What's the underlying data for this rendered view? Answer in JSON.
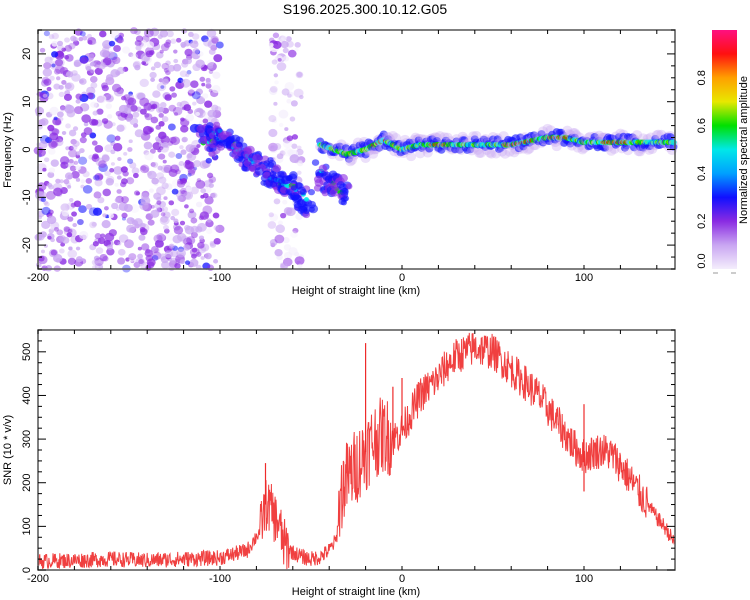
{
  "title": "S196.2025.300.10.12.G05",
  "chart_data": [
    {
      "type": "heatmap",
      "name": "spectrogram",
      "xlabel": "Height of straight line (km)",
      "ylabel": "Frequency (Hz)",
      "xlim": [
        -200,
        150
      ],
      "ylim": [
        -25,
        25
      ],
      "xticks": [
        -200,
        -100,
        0,
        100
      ],
      "yticks": [
        -20,
        -10,
        0,
        10,
        20
      ],
      "grid": false,
      "colorbar": {
        "label": "Normalized spectral amplitude",
        "range": [
          0,
          1
        ],
        "ticks": [
          0.0,
          0.2,
          0.4,
          0.6,
          0.8
        ],
        "colormap": [
          "#f4eefc",
          "#c9a6f2",
          "#8a2be2",
          "#1010ff",
          "#00a0ff",
          "#00e8e8",
          "#00e000",
          "#e8e800",
          "#ffa000",
          "#ff1010",
          "#ff1080"
        ]
      },
      "features": [
        {
          "label": "noise",
          "x_range": [
            -200,
            -100
          ],
          "freq_range": [
            -25,
            25
          ],
          "amplitude": 0.1
        },
        {
          "label": "noise-band",
          "x_range": [
            -72,
            -55
          ],
          "freq_range": [
            -25,
            25
          ],
          "amplitude": 0.05
        },
        {
          "label": "descending-trace-a",
          "points": [
            [
              -110,
              2
            ],
            [
              -100,
              3
            ],
            [
              -90,
              0
            ],
            [
              -80,
              -3
            ],
            [
              -70,
              -6
            ],
            [
              -60,
              -8
            ],
            [
              -50,
              -12
            ]
          ],
          "amplitude": 0.35
        },
        {
          "label": "descending-trace-b",
          "points": [
            [
              -45,
              -5
            ],
            [
              -40,
              -7
            ],
            [
              -35,
              -8
            ],
            [
              -30,
              -10
            ]
          ],
          "amplitude": 0.3
        },
        {
          "label": "stable-carrier",
          "points": [
            [
              -45,
              1
            ],
            [
              -30,
              -1
            ],
            [
              -20,
              0
            ],
            [
              -10,
              2
            ],
            [
              0,
              0
            ],
            [
              10,
              1
            ],
            [
              20,
              1
            ],
            [
              40,
              1
            ],
            [
              60,
              1
            ],
            [
              80,
              2.5
            ],
            [
              90,
              2.5
            ],
            [
              100,
              1.5
            ],
            [
              120,
              1.5
            ],
            [
              150,
              1.5
            ]
          ],
          "amplitude": 0.9
        }
      ]
    },
    {
      "type": "line",
      "name": "snr",
      "xlabel": "Height of straight line (km)",
      "ylabel": "SNR (10 * v/v)",
      "xlim": [
        -200,
        150
      ],
      "ylim": [
        0,
        550
      ],
      "xticks": [
        -200,
        -100,
        0,
        100
      ],
      "yticks": [
        0,
        100,
        200,
        300,
        400,
        500
      ],
      "grid": false,
      "color": "#ee2b2b",
      "series": [
        {
          "name": "SNR",
          "x": [
            -200,
            -180,
            -160,
            -140,
            -120,
            -100,
            -85,
            -78,
            -75,
            -72,
            -70,
            -68,
            -65,
            -60,
            -55,
            -50,
            -45,
            -40,
            -36,
            -34,
            -32,
            -30,
            -25,
            -20,
            -15,
            -10,
            -5,
            0,
            5,
            10,
            15,
            20,
            25,
            30,
            35,
            40,
            45,
            50,
            55,
            60,
            65,
            70,
            75,
            80,
            85,
            90,
            95,
            100,
            105,
            110,
            115,
            120,
            125,
            130,
            135,
            140,
            145,
            150
          ],
          "y": [
            20,
            22,
            25,
            22,
            25,
            28,
            45,
            90,
            150,
            140,
            120,
            110,
            60,
            40,
            30,
            25,
            30,
            45,
            70,
            160,
            200,
            210,
            240,
            270,
            300,
            310,
            300,
            320,
            360,
            400,
            420,
            440,
            470,
            490,
            500,
            510,
            505,
            500,
            480,
            460,
            440,
            420,
            400,
            370,
            340,
            310,
            280,
            260,
            270,
            275,
            265,
            240,
            210,
            180,
            150,
            120,
            95,
            60
          ],
          "spikes": [
            [
              -75,
              245
            ],
            [
              -20,
              520
            ],
            [
              -5,
              420
            ],
            [
              0,
              440
            ],
            [
              100,
              180
            ],
            [
              100,
              380
            ]
          ],
          "noise_amplitude": 30
        }
      ]
    }
  ]
}
